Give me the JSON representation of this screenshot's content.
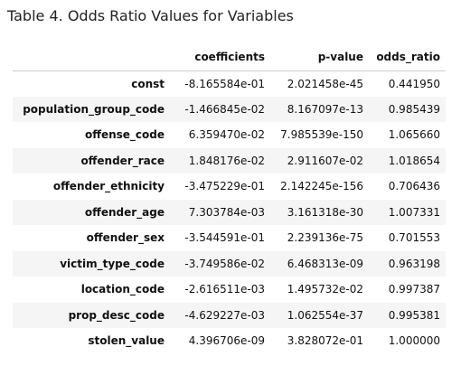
{
  "title": "Table 4. Odds Ratio Values for Variables",
  "table": {
    "columns": [
      "",
      "coefficients",
      "p-value",
      "odds_ratio"
    ],
    "rows": [
      {
        "name": "const",
        "coefficients": "-8.165584e-01",
        "p_value": "2.021458e-45",
        "odds_ratio": "0.441950"
      },
      {
        "name": "population_group_code",
        "coefficients": "-1.466845e-02",
        "p_value": "8.167097e-13",
        "odds_ratio": "0.985439"
      },
      {
        "name": "offense_code",
        "coefficients": "6.359470e-02",
        "p_value": "7.985539e-150",
        "odds_ratio": "1.065660"
      },
      {
        "name": "offender_race",
        "coefficients": "1.848176e-02",
        "p_value": "2.911607e-02",
        "odds_ratio": "1.018654"
      },
      {
        "name": "offender_ethnicity",
        "coefficients": "-3.475229e-01",
        "p_value": "2.142245e-156",
        "odds_ratio": "0.706436"
      },
      {
        "name": "offender_age",
        "coefficients": "7.303784e-03",
        "p_value": "3.161318e-30",
        "odds_ratio": "1.007331"
      },
      {
        "name": "offender_sex",
        "coefficients": "-3.544591e-01",
        "p_value": "2.239136e-75",
        "odds_ratio": "0.701553"
      },
      {
        "name": "victim_type_code",
        "coefficients": "-3.749586e-02",
        "p_value": "6.468313e-09",
        "odds_ratio": "0.963198"
      },
      {
        "name": "location_code",
        "coefficients": "-2.616511e-03",
        "p_value": "1.495732e-02",
        "odds_ratio": "0.997387"
      },
      {
        "name": "prop_desc_code",
        "coefficients": "-4.629227e-03",
        "p_value": "1.062554e-37",
        "odds_ratio": "0.995381"
      },
      {
        "name": "stolen_value",
        "coefficients": "4.396706e-09",
        "p_value": "3.828072e-01",
        "odds_ratio": "1.000000"
      }
    ]
  }
}
